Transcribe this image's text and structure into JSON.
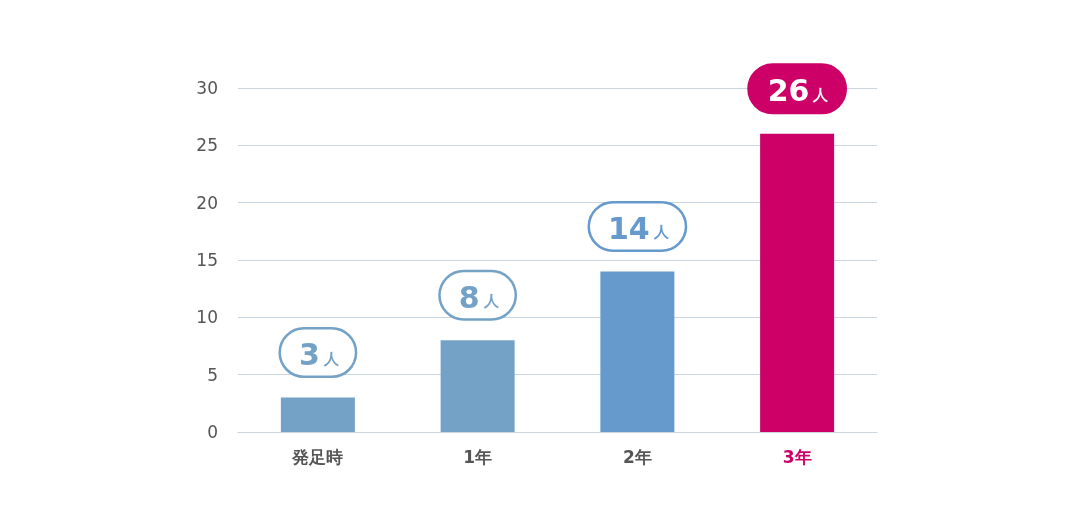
{
  "chart_data": {
    "type": "bar",
    "categories": [
      "発足時",
      "1年",
      "2年",
      "3年"
    ],
    "values": [
      3,
      8,
      14,
      26
    ],
    "colors": [
      "#73a2c6",
      "#73a2c6",
      "#6699cc",
      "#cc0066"
    ],
    "value_labels": [
      "3人",
      "8人",
      "14人",
      "26人"
    ],
    "ylim": [
      0,
      30
    ],
    "yticks": [
      0,
      5,
      10,
      15,
      20,
      25,
      30
    ],
    "grid": "y"
  }
}
